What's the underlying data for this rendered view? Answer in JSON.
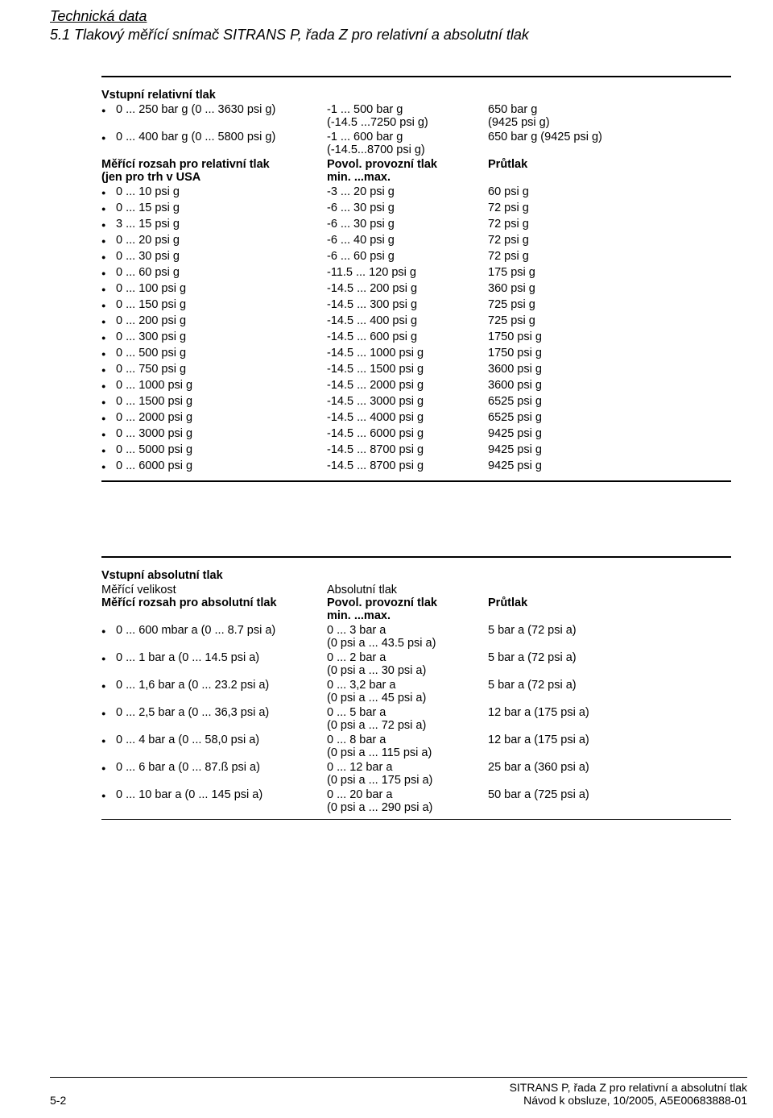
{
  "header": {
    "title": "Technická data",
    "subtitle": "5.1 Tlakový měřící snímač SITRANS P, řada Z pro relativní a absolutní tlak"
  },
  "sec1": {
    "title": "Vstupní relativní tlak",
    "rows": [
      {
        "c1": "0 ... 250 bar g (0 ... 3630 psi g)",
        "c2": "-1 ... 500 bar g\n(-14.5 ...7250 psi g)",
        "c3": "650 bar g\n(9425 psi g)"
      },
      {
        "c1": "0 ... 400 bar g (0 ... 5800 psi g)",
        "c2": "-1 ... 600 bar g\n(-14.5...8700 psi g)",
        "c3": "650 bar g (9425 psi g)"
      }
    ],
    "sub": {
      "h1": "Měřící rozsah pro relativní tlak\n(jen pro trh v USA",
      "h2": "Povol. provozní tlak\nmin. ...max.",
      "h3": "Průtlak"
    },
    "rows2": [
      {
        "c1": "0 ... 10 psi g",
        "c2": "-3 ... 20 psi g",
        "c3": "60 psi g"
      },
      {
        "c1": "0 ... 15 psi g",
        "c2": "-6 ... 30 psi g",
        "c3": "72 psi g"
      },
      {
        "c1": "3 ... 15 psi g",
        "c2": "-6 ... 30 psi g",
        "c3": "72 psi g"
      },
      {
        "c1": "0 ... 20 psi g",
        "c2": "-6 ... 40 psi g",
        "c3": "72 psi g"
      },
      {
        "c1": "0 ... 30 psi g",
        "c2": "-6 ... 60 psi g",
        "c3": "72 psi g"
      },
      {
        "c1": "0 ... 60 psi g",
        "c2": "-11.5 ... 120 psi g",
        "c3": "175 psi g"
      },
      {
        "c1": "0 ... 100 psi g",
        "c2": "-14.5 ... 200 psi g",
        "c3": "360 psi g"
      },
      {
        "c1": "0 ... 150 psi g",
        "c2": "-14.5 ... 300 psi g",
        "c3": "725 psi g"
      },
      {
        "c1": "0 ... 200 psi g",
        "c2": "-14.5 ... 400 psi g",
        "c3": "725 psi g"
      },
      {
        "c1": "0 ... 300 psi g",
        "c2": "-14.5 ... 600 psi g",
        "c3": "1750 psi g"
      },
      {
        "c1": "0 ... 500 psi g",
        "c2": "-14.5 ... 1000 psi g",
        "c3": "1750 psi g"
      },
      {
        "c1": "0 ... 750 psi g",
        "c2": "-14.5 ... 1500 psi g",
        "c3": "3600 psi g"
      },
      {
        "c1": "0 ... 1000 psi g",
        "c2": "-14.5 ... 2000 psi g",
        "c3": "3600 psi g"
      },
      {
        "c1": "0 ... 1500 psi g",
        "c2": "-14.5 ... 3000 psi g",
        "c3": "6525 psi g"
      },
      {
        "c1": "0 ... 2000 psi g",
        "c2": "-14.5 ... 4000 psi g",
        "c3": "6525 psi g"
      },
      {
        "c1": "0 ... 3000 psi g",
        "c2": "-14.5 ... 6000 psi g",
        "c3": "9425 psi g"
      },
      {
        "c1": "0 ... 5000 psi g",
        "c2": "-14.5 ... 8700 psi g",
        "c3": "9425 psi g"
      },
      {
        "c1": "0 ... 6000 psi g",
        "c2": "-14.5 ... 8700 psi g",
        "c3": "9425 psi g"
      }
    ]
  },
  "sec2": {
    "title": "Vstupní absolutní tlak",
    "l1": "Měřící velikost",
    "r1": "Absolutní tlak",
    "l2": "Měřící rozsah pro absolutní tlak",
    "r2": "Povol. provozní tlak\nmin. ...max.",
    "r3": "Průtlak",
    "rows": [
      {
        "c1": "0 ... 600 mbar a (0 ... 8.7 psi a)",
        "c2": "0 ... 3 bar a\n(0 psi a ... 43.5 psi a)",
        "c3": "5 bar a (72 psi a)"
      },
      {
        "c1": "0 ... 1 bar a (0 ... 14.5 psi a)",
        "c2": "0 ... 2 bar a\n(0 psi a ... 30 psi a)",
        "c3": "5 bar a (72 psi a)"
      },
      {
        "c1": "0 ... 1,6 bar a (0 ... 23.2 psi a)",
        "c2": "0 ... 3,2 bar a\n(0 psi a ... 45 psi a)",
        "c3": "5 bar a (72 psi a)"
      },
      {
        "c1": "0 ... 2,5 bar a (0 ... 36,3 psi a)",
        "c2": "0 ... 5 bar a\n(0 psi a ... 72 psi a)",
        "c3": "12 bar a (175 psi a)"
      },
      {
        "c1": "0 ... 4 bar a (0 ... 58,0 psi a)",
        "c2": "0 ... 8 bar a\n(0 psi a ... 115 psi a)",
        "c3": "12 bar a (175 psi a)"
      },
      {
        "c1": "0 ... 6 bar a (0 ... 87.ß psi a)",
        "c2": "0 ... 12 bar a\n(0 psi a ... 175 psi a)",
        "c3": "25 bar a (360 psi a)"
      },
      {
        "c1": "0 ... 10 bar a (0 ... 145 psi a)",
        "c2": "0 ... 20 bar a\n(0 psi a ... 290 psi a)",
        "c3": "50 bar a (725 psi a)"
      }
    ]
  },
  "footer": {
    "left": "5-2",
    "right1": "SITRANS P, řada Z pro relativní a absolutní tlak",
    "right2": "Návod k obsluze, 10/2005, A5E00683888-01"
  }
}
